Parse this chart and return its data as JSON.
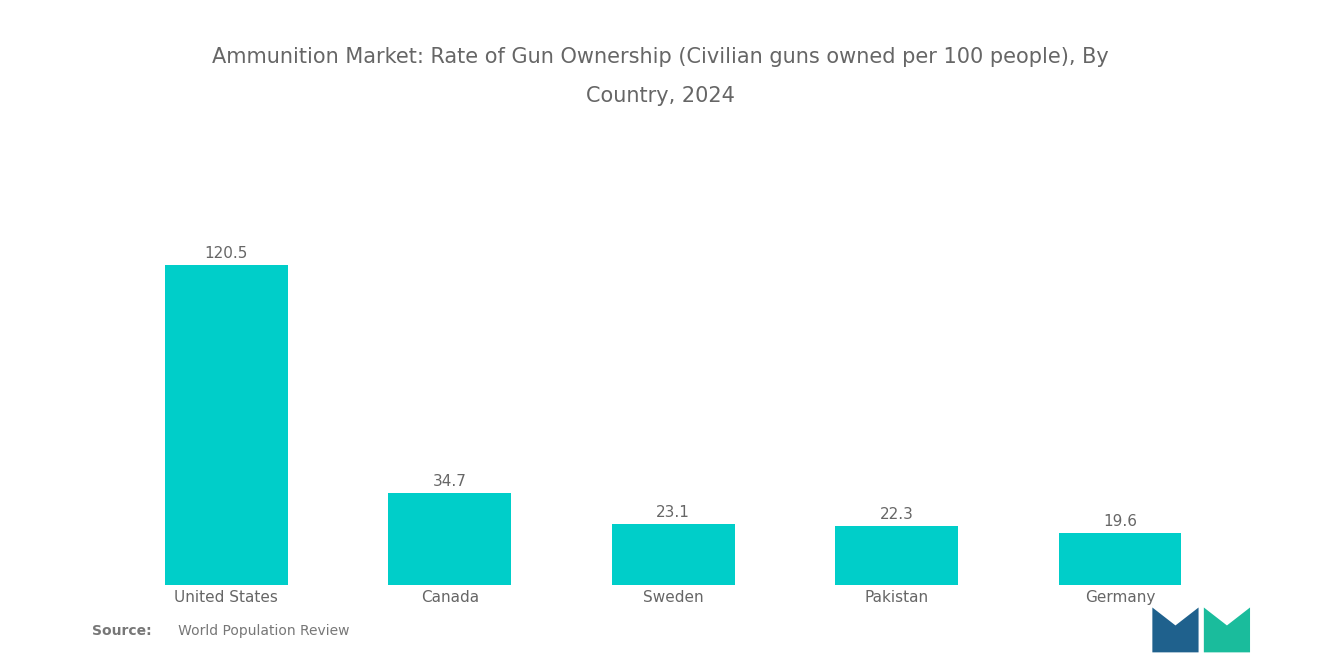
{
  "title_line1": "Ammunition Market: Rate of Gun Ownership (Civilian guns owned per 100 people), By",
  "title_line2": "Country, 2024",
  "categories": [
    "United States",
    "Canada",
    "Sweden",
    "Pakistan",
    "Germany"
  ],
  "values": [
    120.5,
    34.7,
    23.1,
    22.3,
    19.6
  ],
  "bar_color": "#00CEC9",
  "background_color": "#ffffff",
  "title_color": "#666666",
  "label_color": "#666666",
  "value_color": "#666666",
  "source_label": "Source:",
  "source_text": "   World Population Review",
  "source_color": "#777777",
  "title_fontsize": 15,
  "label_fontsize": 11,
  "value_fontsize": 11,
  "source_fontsize": 10,
  "ylim": [
    0,
    145
  ],
  "bar_width": 0.55,
  "logo_dark": "#1f618d",
  "logo_teal": "#1abc9c"
}
